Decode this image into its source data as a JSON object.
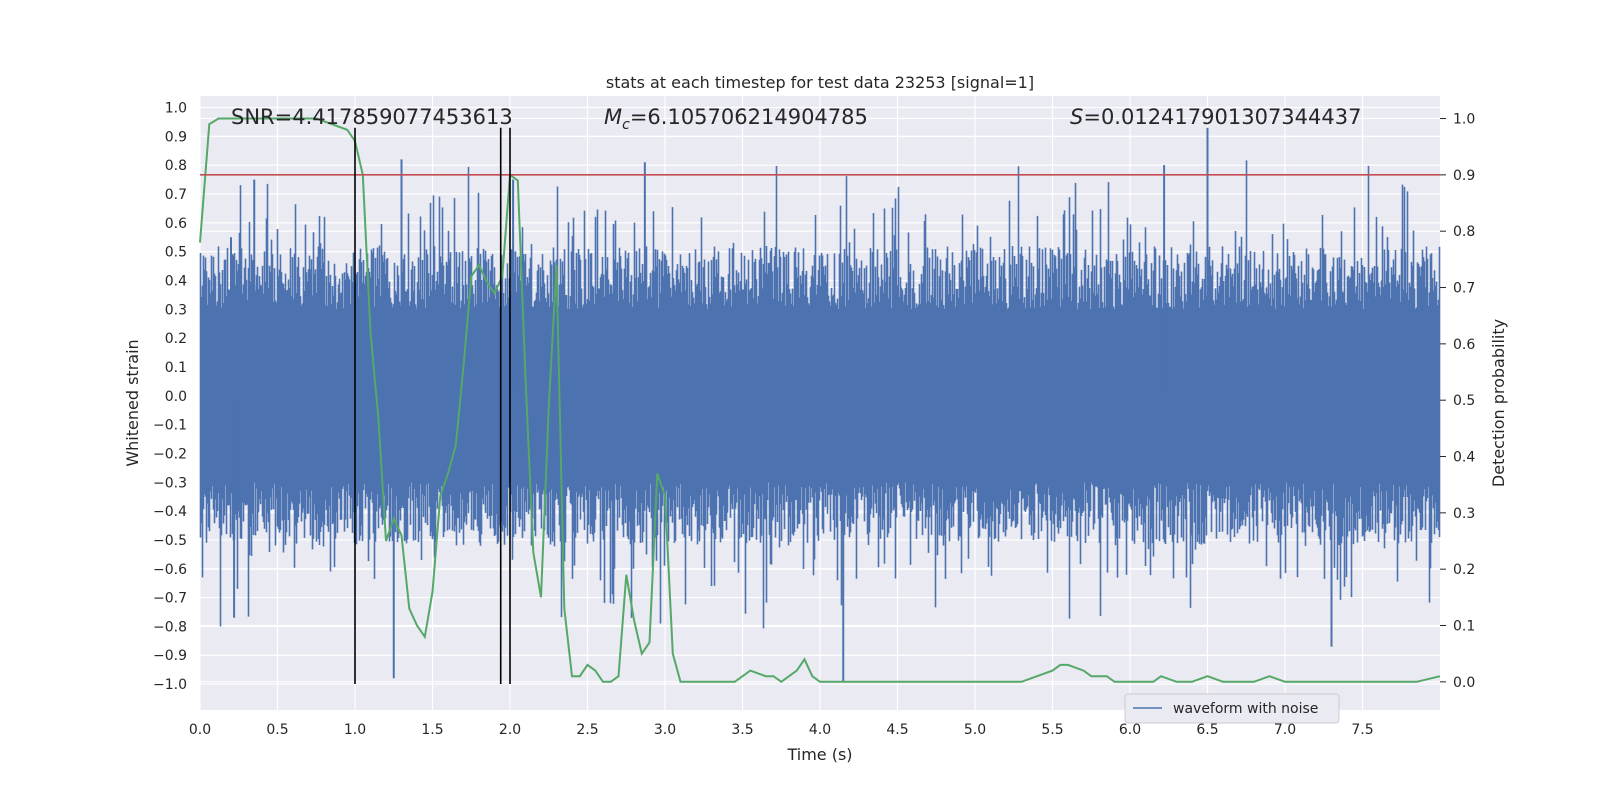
{
  "chart_data": {
    "type": "line",
    "title": "stats at each timestep for test data 23253 [signal=1]",
    "xlabel": "Time (s)",
    "ylabel": "Whitened strain",
    "ylabel_right": "Detection probability",
    "xlim": [
      0.0,
      8.0
    ],
    "ylim": [
      -1.09,
      1.04
    ],
    "ylim_right": [
      -0.05,
      1.04
    ],
    "x_ticks": [
      "0.0",
      "0.5",
      "1.0",
      "1.5",
      "2.0",
      "2.5",
      "3.0",
      "3.5",
      "4.0",
      "4.5",
      "5.0",
      "5.5",
      "6.0",
      "6.5",
      "7.0",
      "7.5"
    ],
    "y_ticks": [
      "1.0",
      "0.9",
      "0.8",
      "0.7",
      "0.6",
      "0.5",
      "0.4",
      "0.3",
      "0.2",
      "0.1",
      "0.0",
      "−0.1",
      "−0.2",
      "−0.3",
      "−0.4",
      "−0.5",
      "−0.6",
      "−0.7",
      "−0.8",
      "−0.9",
      "−1.0"
    ],
    "y_ticks_right": [
      "1.0",
      "0.9",
      "0.8",
      "0.7",
      "0.6",
      "0.5",
      "0.4",
      "0.3",
      "0.2",
      "0.1",
      "0.0"
    ],
    "grid": true,
    "legend": {
      "placement": "lower-right",
      "entries": [
        "waveform with noise"
      ]
    },
    "annotations": {
      "snr": "SNR=4.417859077453613",
      "mc_sym": "M",
      "mc_sub": "c",
      "mc_val": "=6.105706214904785",
      "s_sym": "S",
      "s_val": "=0.012417901307344437"
    },
    "threshold": {
      "axis": "right",
      "value": 0.9,
      "color": "#c44e52"
    },
    "vlines": [
      1.0,
      1.94,
      2.0
    ],
    "series": [
      {
        "name": "waveform with noise",
        "axis": "left",
        "color": "#4c72b0",
        "description": "dense whitened noise trace, approx. 0 to 8 s",
        "envelope": {
          "core": 0.3,
          "typical_max": 0.6,
          "peaks": [
            0.93,
            0.82,
            0.81,
            0.8,
            0.79,
            0.75,
            0.75,
            0.75
          ]
        }
      },
      {
        "axis": "right",
        "color": "#55a868",
        "x": [
          0.0,
          0.06,
          0.12,
          0.2,
          0.3,
          0.45,
          0.6,
          0.75,
          0.85,
          0.95,
          1.0,
          1.05,
          1.1,
          1.15,
          1.2,
          1.25,
          1.3,
          1.35,
          1.4,
          1.45,
          1.5,
          1.55,
          1.6,
          1.65,
          1.7,
          1.75,
          1.8,
          1.85,
          1.9,
          1.95,
          2.0,
          2.05,
          2.1,
          2.15,
          2.2,
          2.25,
          2.3,
          2.35,
          2.4,
          2.45,
          2.5,
          2.55,
          2.6,
          2.65,
          2.7,
          2.75,
          2.8,
          2.85,
          2.9,
          2.95,
          3.0,
          3.05,
          3.1,
          3.15,
          3.2,
          3.25,
          3.3,
          3.35,
          3.45,
          3.55,
          3.65,
          3.7,
          3.75,
          3.8,
          3.85,
          3.9,
          3.95,
          4.0,
          4.05,
          4.1,
          4.2,
          4.5,
          4.8,
          5.0,
          5.2,
          5.3,
          5.4,
          5.5,
          5.55,
          5.6,
          5.7,
          5.75,
          5.8,
          5.85,
          5.9,
          5.95,
          6.0,
          6.1,
          6.15,
          6.2,
          6.3,
          6.4,
          6.5,
          6.6,
          6.7,
          6.75,
          6.8,
          6.9,
          7.0,
          7.1,
          7.2,
          7.3,
          7.5,
          7.7,
          7.85,
          8.0
        ],
        "y": [
          0.78,
          0.99,
          1.0,
          1.0,
          1.0,
          1.0,
          1.0,
          1.0,
          0.99,
          0.98,
          0.96,
          0.9,
          0.62,
          0.47,
          0.25,
          0.29,
          0.26,
          0.13,
          0.1,
          0.08,
          0.16,
          0.33,
          0.37,
          0.42,
          0.56,
          0.72,
          0.74,
          0.71,
          0.69,
          0.72,
          0.9,
          0.89,
          0.54,
          0.23,
          0.15,
          0.49,
          0.74,
          0.13,
          0.01,
          0.01,
          0.03,
          0.02,
          0.0,
          0.0,
          0.01,
          0.19,
          0.11,
          0.05,
          0.07,
          0.37,
          0.33,
          0.05,
          0.0,
          0.0,
          0.0,
          0.0,
          0.0,
          0.0,
          0.0,
          0.02,
          0.01,
          0.01,
          0.0,
          0.01,
          0.02,
          0.04,
          0.01,
          0.0,
          0.0,
          0.0,
          0.0,
          0.0,
          0.0,
          0.0,
          0.0,
          0.0,
          0.01,
          0.02,
          0.03,
          0.03,
          0.02,
          0.01,
          0.01,
          0.01,
          0.0,
          0.0,
          0.0,
          0.0,
          0.0,
          0.01,
          0.0,
          0.0,
          0.01,
          0.0,
          0.0,
          0.0,
          0.0,
          0.01,
          0.0,
          0.0,
          0.0,
          0.0,
          0.0,
          0.0,
          0.0,
          0.01
        ]
      }
    ]
  }
}
